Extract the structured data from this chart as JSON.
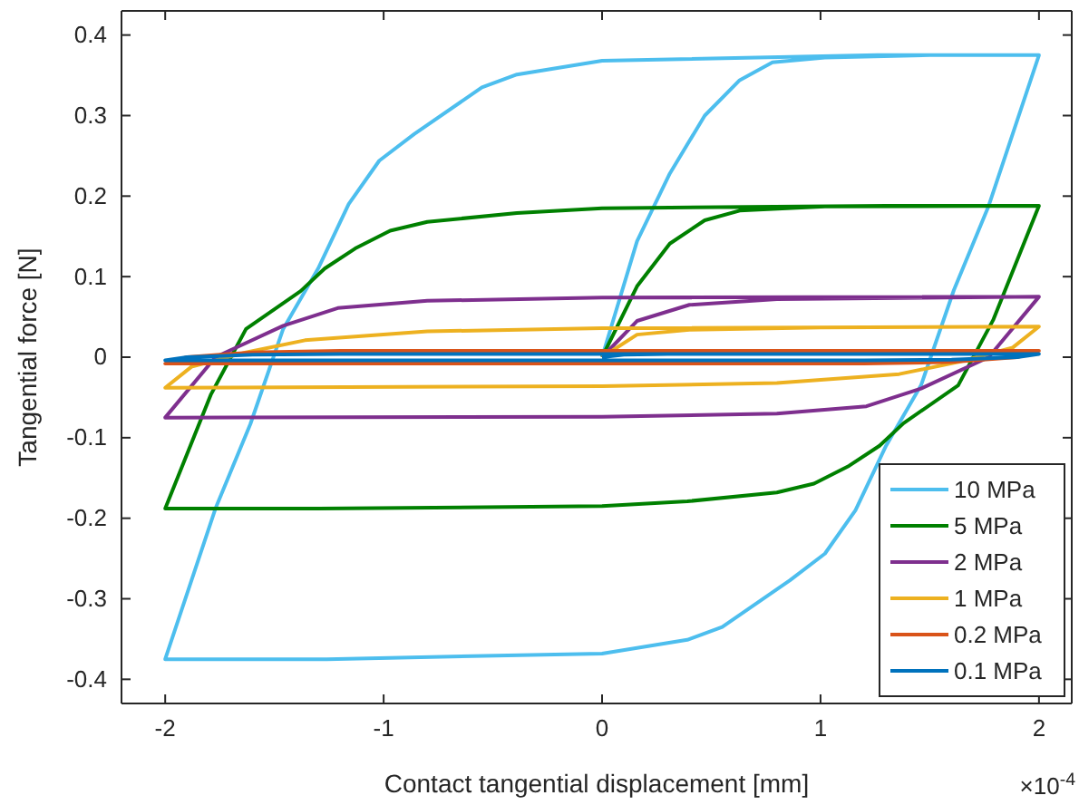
{
  "chart_data": {
    "type": "line",
    "xlabel": "Contact tangential displacement [mm]",
    "ylabel": "Tangential force [N]",
    "xlim": [
      -2.2,
      2.15
    ],
    "ylim": [
      -0.43,
      0.43
    ],
    "xticks": [
      -2,
      -1,
      0,
      1,
      2
    ],
    "yticks": [
      -0.4,
      -0.3,
      -0.2,
      -0.1,
      0,
      0.1,
      0.2,
      0.3,
      0.4
    ],
    "grid": false,
    "legend": "bottom right",
    "marker": "none",
    "line_style": "solid",
    "annotations": [
      "×10$^{-4}$"
    ],
    "series": [
      {
        "name": "10 MPa",
        "color": "#4dbeee",
        "x": [
          0,
          0.16,
          0.31,
          0.47,
          0.63,
          0.78,
          1.02,
          1.5,
          2,
          1.77,
          1.61,
          1.46,
          1.3,
          1.16,
          1.02,
          0.86,
          0.55,
          0.39,
          0,
          -1.26,
          -2,
          -1.77,
          -1.61,
          -1.46,
          -1.3,
          -1.16,
          -1.02,
          -0.86,
          -0.55,
          -0.39,
          0,
          1.26,
          2
        ],
        "values": [
          0,
          0.144,
          0.228,
          0.3,
          0.344,
          0.366,
          0.372,
          0.375,
          0.375,
          0.188,
          0.083,
          -0.035,
          -0.11,
          -0.19,
          -0.244,
          -0.277,
          -0.335,
          -0.351,
          -0.368,
          -0.375,
          -0.375,
          -0.188,
          -0.083,
          0.035,
          0.11,
          0.19,
          0.244,
          0.277,
          0.335,
          0.351,
          0.368,
          0.375,
          0.375
        ]
      },
      {
        "name": "5 MPa",
        "color": "#008000",
        "x": [
          0,
          0.16,
          0.31,
          0.47,
          0.63,
          1.02,
          2,
          1.79,
          1.63,
          1.38,
          1.27,
          1.13,
          0.97,
          0.8,
          0.39,
          0,
          -1.3,
          -2,
          -1.79,
          -1.63,
          -1.38,
          -1.27,
          -1.13,
          -0.97,
          -0.8,
          -0.39,
          0,
          1.3,
          2
        ],
        "values": [
          0,
          0.088,
          0.141,
          0.17,
          0.182,
          0.187,
          0.188,
          0.046,
          -0.035,
          -0.082,
          -0.11,
          -0.135,
          -0.157,
          -0.168,
          -0.179,
          -0.185,
          -0.188,
          -0.188,
          -0.046,
          0.035,
          0.082,
          0.11,
          0.135,
          0.157,
          0.168,
          0.179,
          0.185,
          0.188,
          0.188
        ]
      },
      {
        "name": "2 MPa",
        "color": "#7e2f8e",
        "x": [
          0,
          0.16,
          0.4,
          0.8,
          2,
          1.77,
          1.46,
          1.21,
          0.8,
          0,
          -2,
          -1.77,
          -1.46,
          -1.21,
          -0.8,
          0,
          2
        ],
        "values": [
          0,
          0.045,
          0.065,
          0.072,
          0.075,
          0,
          -0.039,
          -0.061,
          -0.07,
          -0.074,
          -0.075,
          0,
          0.039,
          0.061,
          0.07,
          0.074,
          0.075
        ]
      },
      {
        "name": "1 MPa",
        "color": "#edb120",
        "x": [
          0,
          0.16,
          0.4,
          1,
          2,
          1.88,
          1.63,
          1.36,
          0.8,
          0,
          -2,
          -1.88,
          -1.63,
          -1.36,
          -0.8,
          0,
          2
        ],
        "values": [
          0,
          0.028,
          0.034,
          0.037,
          0.038,
          0.012,
          -0.006,
          -0.021,
          -0.032,
          -0.036,
          -0.038,
          -0.012,
          0.006,
          0.021,
          0.032,
          0.036,
          0.038
        ]
      },
      {
        "name": "0.2 MPa",
        "color": "#d95319",
        "x": [
          0,
          0.1,
          0.3,
          2,
          1.9,
          1.6,
          1.2,
          -2,
          -1.9,
          -1.6,
          -1.2,
          2
        ],
        "values": [
          0,
          0.006,
          0.008,
          0.008,
          0,
          -0.006,
          -0.008,
          -0.008,
          0,
          0.006,
          0.008,
          0.008
        ]
      },
      {
        "name": "0.1 MPa",
        "color": "#0072bd",
        "x": [
          0,
          0.1,
          0.3,
          2,
          1.9,
          1.6,
          1.2,
          -2,
          -1.9,
          -1.6,
          -1.2,
          2
        ],
        "values": [
          0,
          0.003,
          0.004,
          0.004,
          0,
          -0.003,
          -0.004,
          -0.004,
          0,
          0.003,
          0.004,
          0.004
        ]
      }
    ]
  }
}
